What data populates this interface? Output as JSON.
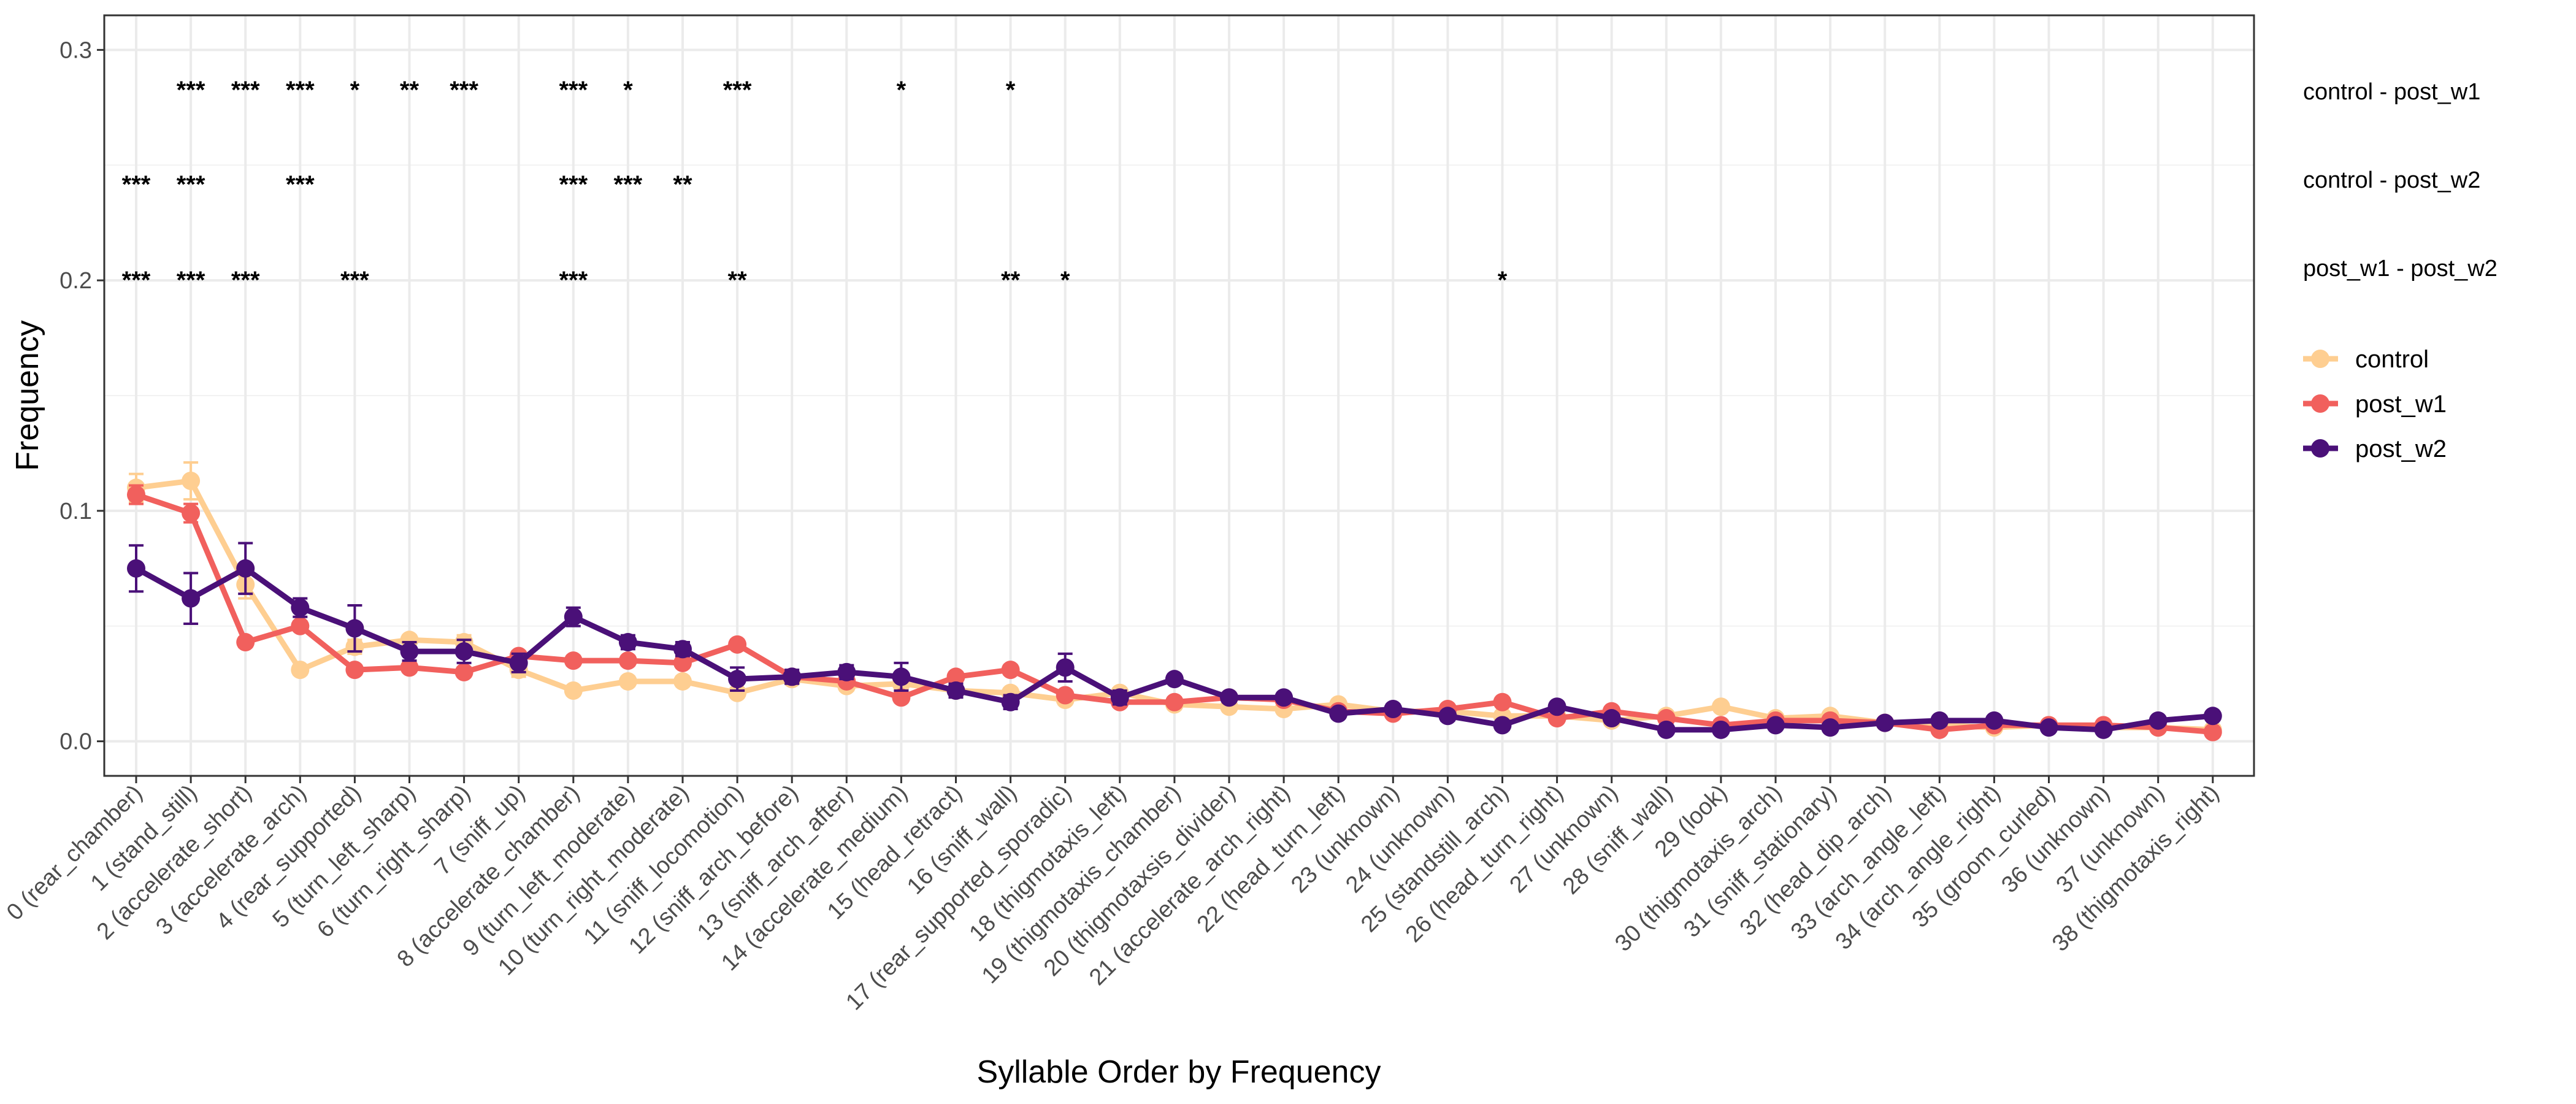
{
  "chart_data": {
    "type": "line",
    "xlabel": "Syllable Order by Frequency",
    "ylabel": "Frequency",
    "ylim": [
      -0.015,
      0.315
    ],
    "yticks": [
      0.0,
      0.1,
      0.2,
      0.3
    ],
    "ytick_labels": [
      "0.0",
      "0.1",
      "0.2",
      "0.3"
    ],
    "grid": true,
    "legend_position": "right",
    "categories": [
      "0 (rear_chamber)",
      "1 (stand_still)",
      "2 (accelerate_short)",
      "3 (accelerate_arch)",
      "4 (rear_supported)",
      "5 (turn_left_sharp)",
      "6 (turn_right_sharp)",
      "7 (sniff_up)",
      "8 (accelerate_chamber)",
      "9 (turn_left_moderate)",
      "10 (turn_right_moderate)",
      "11 (sniff_locomotion)",
      "12 (sniff_arch_before)",
      "13 (sniff_arch_after)",
      "14 (accelerate_medium)",
      "15 (head_retract)",
      "16 (sniff_wall)",
      "17 (rear_supported_sporadic)",
      "18 (thigmotaxis_left)",
      "19 (thigmotaxis_chamber)",
      "20 (thigmotaxsis_divider)",
      "21 (accelerate_arch_right)",
      "22 (head_turn_left)",
      "23 (unknown)",
      "24 (unknown)",
      "25 (standstill_arch)",
      "26 (head_turn_right)",
      "27 (unknown)",
      "28 (sniff_wall)",
      "29 (look)",
      "30 (thigmotaxis_arch)",
      "31 (sniff_stationary)",
      "32 (head_dip_arch)",
      "33 (arch_angle_left)",
      "34 (arch_angle_right)",
      "35 (groom_curled)",
      "36 (unknown)",
      "37 (unknown)",
      "38 (thigmotaxis_right)"
    ],
    "series": [
      {
        "name": "control",
        "color": "#FECE91",
        "values": [
          0.11,
          0.113,
          0.068,
          0.031,
          0.041,
          0.044,
          0.043,
          0.031,
          0.022,
          0.026,
          0.026,
          0.021,
          0.027,
          0.024,
          0.025,
          0.022,
          0.021,
          0.018,
          0.021,
          0.016,
          0.015,
          0.014,
          0.016,
          0.013,
          0.013,
          0.011,
          0.011,
          0.009,
          0.011,
          0.015,
          0.01,
          0.011,
          0.008,
          0.007,
          0.006,
          0.007,
          0.006,
          0.006,
          0.005
        ],
        "errors": [
          0.006,
          0.008,
          0.006,
          0.002,
          0.003,
          0.002,
          0.003,
          0.003,
          0.002,
          0.002,
          0.002,
          0.002,
          0.002,
          0.002,
          0.002,
          0.002,
          0.002,
          0.002,
          0.002,
          0.002,
          0.002,
          0.002,
          0.002,
          0.001,
          0.001,
          0.001,
          0.001,
          0.001,
          0.001,
          0.001,
          0.001,
          0.001,
          0.001,
          0.001,
          0.001,
          0.001,
          0.001,
          0.001,
          0.001
        ]
      },
      {
        "name": "post_w1",
        "color": "#F1605D",
        "values": [
          0.107,
          0.099,
          0.043,
          0.05,
          0.031,
          0.032,
          0.03,
          0.037,
          0.035,
          0.035,
          0.034,
          0.042,
          0.028,
          0.026,
          0.019,
          0.028,
          0.031,
          0.02,
          0.017,
          0.017,
          0.019,
          0.018,
          0.013,
          0.012,
          0.014,
          0.017,
          0.01,
          0.013,
          0.01,
          0.007,
          0.009,
          0.009,
          0.008,
          0.005,
          0.007,
          0.007,
          0.007,
          0.006,
          0.004
        ],
        "errors": [
          0.004,
          0.004,
          0.002,
          0.002,
          0.002,
          0.002,
          0.002,
          0.002,
          0.002,
          0.002,
          0.002,
          0.002,
          0.002,
          0.002,
          0.002,
          0.002,
          0.002,
          0.002,
          0.002,
          0.002,
          0.001,
          0.001,
          0.001,
          0.001,
          0.001,
          0.001,
          0.001,
          0.001,
          0.001,
          0.001,
          0.001,
          0.001,
          0.001,
          0.001,
          0.001,
          0.001,
          0.001,
          0.001,
          0.001
        ]
      },
      {
        "name": "post_w2",
        "color": "#4A1078",
        "values": [
          0.075,
          0.062,
          0.075,
          0.058,
          0.049,
          0.039,
          0.039,
          0.034,
          0.054,
          0.043,
          0.04,
          0.027,
          0.028,
          0.03,
          0.028,
          0.022,
          0.017,
          0.032,
          0.019,
          0.027,
          0.019,
          0.019,
          0.012,
          0.014,
          0.011,
          0.007,
          0.015,
          0.01,
          0.005,
          0.005,
          0.007,
          0.006,
          0.008,
          0.009,
          0.009,
          0.006,
          0.005,
          0.009,
          0.011
        ],
        "errors": [
          0.01,
          0.011,
          0.011,
          0.004,
          0.01,
          0.004,
          0.005,
          0.004,
          0.004,
          0.003,
          0.003,
          0.005,
          0.003,
          0.003,
          0.006,
          0.003,
          0.003,
          0.006,
          0.003,
          0.002,
          0.002,
          0.002,
          0.002,
          0.002,
          0.002,
          0.002,
          0.002,
          0.002,
          0.001,
          0.001,
          0.001,
          0.001,
          0.001,
          0.001,
          0.001,
          0.001,
          0.001,
          0.001,
          0.001
        ]
      }
    ],
    "comparisons": [
      {
        "label": "control - post_w1",
        "marks": [
          [
            1,
            "***"
          ],
          [
            2,
            "***"
          ],
          [
            3,
            "***"
          ],
          [
            4,
            "*"
          ],
          [
            5,
            "**"
          ],
          [
            6,
            "***"
          ],
          [
            8,
            "***"
          ],
          [
            9,
            "*"
          ],
          [
            11,
            "***"
          ],
          [
            14,
            "*"
          ],
          [
            16,
            "*"
          ]
        ]
      },
      {
        "label": "control - post_w2",
        "marks": [
          [
            0,
            "***"
          ],
          [
            1,
            "***"
          ],
          [
            3,
            "***"
          ],
          [
            8,
            "***"
          ],
          [
            9,
            "***"
          ],
          [
            10,
            "**"
          ]
        ]
      },
      {
        "label": "post_w1 - post_w2",
        "marks": [
          [
            0,
            "***"
          ],
          [
            1,
            "***"
          ],
          [
            2,
            "***"
          ],
          [
            4,
            "***"
          ],
          [
            8,
            "***"
          ],
          [
            11,
            "**"
          ],
          [
            16,
            "**"
          ],
          [
            17,
            "*"
          ],
          [
            25,
            "*"
          ]
        ]
      }
    ]
  }
}
